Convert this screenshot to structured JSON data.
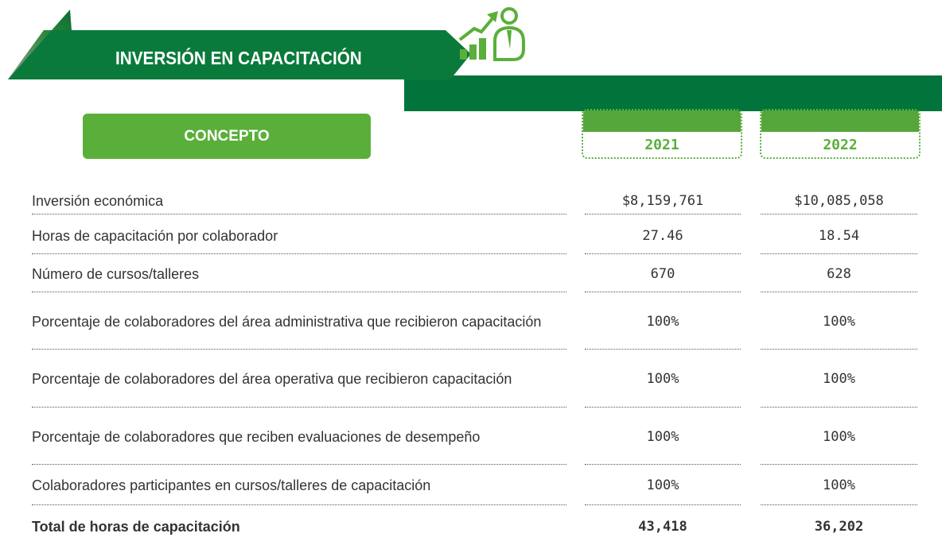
{
  "header": {
    "title": "INVERSIÓN EN CAPACITACIÓN"
  },
  "table": {
    "columns": [
      "CONCEPTO",
      "2021",
      "2022"
    ],
    "rows": [
      [
        "Inversión económica",
        "$8,159,761",
        "$10,085,058"
      ],
      [
        "Horas de capacitación por colaborador",
        "27.46",
        "18.54"
      ],
      [
        "Número de cursos/talleres",
        "670",
        "628"
      ],
      [
        "Porcentaje de colaboradores del área administrativa que recibieron capacitación",
        "100%",
        "100%"
      ],
      [
        "Porcentaje de colaboradores del área operativa que recibieron capacitación",
        "100%",
        "100%"
      ],
      [
        "Porcentaje de colaboradores que reciben evaluaciones de desempeño",
        "100%",
        "100%"
      ],
      [
        "Colaboradores participantes en cursos/talleres de capacitación",
        "100%",
        "100%"
      ]
    ],
    "total": [
      "Total de horas de capacitación",
      "43,418",
      "36,202"
    ]
  }
}
